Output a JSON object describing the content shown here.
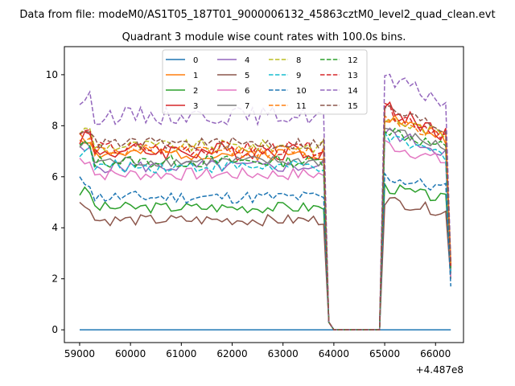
{
  "chart_data": {
    "type": "line",
    "suptitle": "Data from file: modeM0/AS1T05_187T01_9000006132_45863cztM0_level2_quad_clean.evt",
    "title": "Quadrant 3 module wise count rates with 100.0s bins.",
    "xlabel": "",
    "ylabel": "",
    "x_offset_label": "+4.487e8",
    "xlim": [
      58700,
      66550
    ],
    "ylim": [
      -0.5,
      11.1
    ],
    "x_ticks": [
      59000,
      60000,
      61000,
      62000,
      63000,
      64000,
      65000,
      66000
    ],
    "x_tick_labels": [
      "59000",
      "60000",
      "61000",
      "62000",
      "63000",
      "64000",
      "65000",
      "66000"
    ],
    "y_ticks": [
      0,
      2,
      4,
      6,
      8,
      10
    ],
    "y_tick_labels": [
      "0",
      "2",
      "4",
      "6",
      "8",
      "10"
    ],
    "grid": false,
    "legend_position": "upper center",
    "segments": [
      {
        "x_start": 59000,
        "x_end": 63800,
        "step": 100
      },
      {
        "x_start": 63800,
        "x_end": 64000,
        "step": 100,
        "drop": true
      },
      {
        "x_start": 64000,
        "x_end": 64900,
        "step": 100,
        "zero": true
      },
      {
        "x_start": 64900,
        "x_end": 66300,
        "step": 100
      }
    ],
    "series": [
      {
        "name": "0",
        "color": "#1f77b4",
        "dash": "solid",
        "base": 0.0,
        "high": 0.0,
        "end": 0.0,
        "noise": 0.0
      },
      {
        "name": "1",
        "color": "#ff7f0e",
        "dash": "solid",
        "base": 6.9,
        "high": 8.4,
        "end": 2.4,
        "noise": 0.25
      },
      {
        "name": "2",
        "color": "#2ca02c",
        "dash": "solid",
        "base": 4.8,
        "high": 5.6,
        "end": 2.3,
        "noise": 0.22
      },
      {
        "name": "3",
        "color": "#d62728",
        "dash": "solid",
        "base": 7.0,
        "high": 8.7,
        "end": 2.5,
        "noise": 0.35
      },
      {
        "name": "4",
        "color": "#9467bd",
        "dash": "solid",
        "base": 6.4,
        "high": 7.8,
        "end": 2.2,
        "noise": 0.25
      },
      {
        "name": "5",
        "color": "#8c564b",
        "dash": "solid",
        "base": 4.3,
        "high": 5.1,
        "end": 2.0,
        "noise": 0.22
      },
      {
        "name": "6",
        "color": "#e377c2",
        "dash": "solid",
        "base": 6.1,
        "high": 7.3,
        "end": 2.1,
        "noise": 0.25
      },
      {
        "name": "7",
        "color": "#7f7f7f",
        "dash": "solid",
        "base": 6.6,
        "high": 7.9,
        "end": 2.2,
        "noise": 0.22
      },
      {
        "name": "8",
        "color": "#bcbd22",
        "dash": "dashed",
        "base": 7.2,
        "high": 8.3,
        "end": 2.6,
        "noise": 0.25
      },
      {
        "name": "9",
        "color": "#17becf",
        "dash": "dashed",
        "base": 6.4,
        "high": 7.5,
        "end": 2.3,
        "noise": 0.25
      },
      {
        "name": "10",
        "color": "#1f77b4",
        "dash": "dashed",
        "base": 5.2,
        "high": 6.0,
        "end": 1.7,
        "noise": 0.25
      },
      {
        "name": "11",
        "color": "#ff7f0e",
        "dash": "dashed",
        "base": 7.0,
        "high": 8.4,
        "end": 2.5,
        "noise": 0.25
      },
      {
        "name": "12",
        "color": "#2ca02c",
        "dash": "dashed",
        "base": 6.6,
        "high": 7.9,
        "end": 2.4,
        "noise": 0.25
      },
      {
        "name": "13",
        "color": "#d62728",
        "dash": "dashed",
        "base": 7.1,
        "high": 8.6,
        "end": 2.5,
        "noise": 0.28
      },
      {
        "name": "14",
        "color": "#9467bd",
        "dash": "dashed",
        "base": 8.4,
        "high": 9.8,
        "end": 2.7,
        "noise": 0.35
      },
      {
        "name": "15",
        "color": "#8c564b",
        "dash": "dashed",
        "base": 7.3,
        "high": 8.7,
        "end": 2.6,
        "noise": 0.25
      }
    ]
  }
}
